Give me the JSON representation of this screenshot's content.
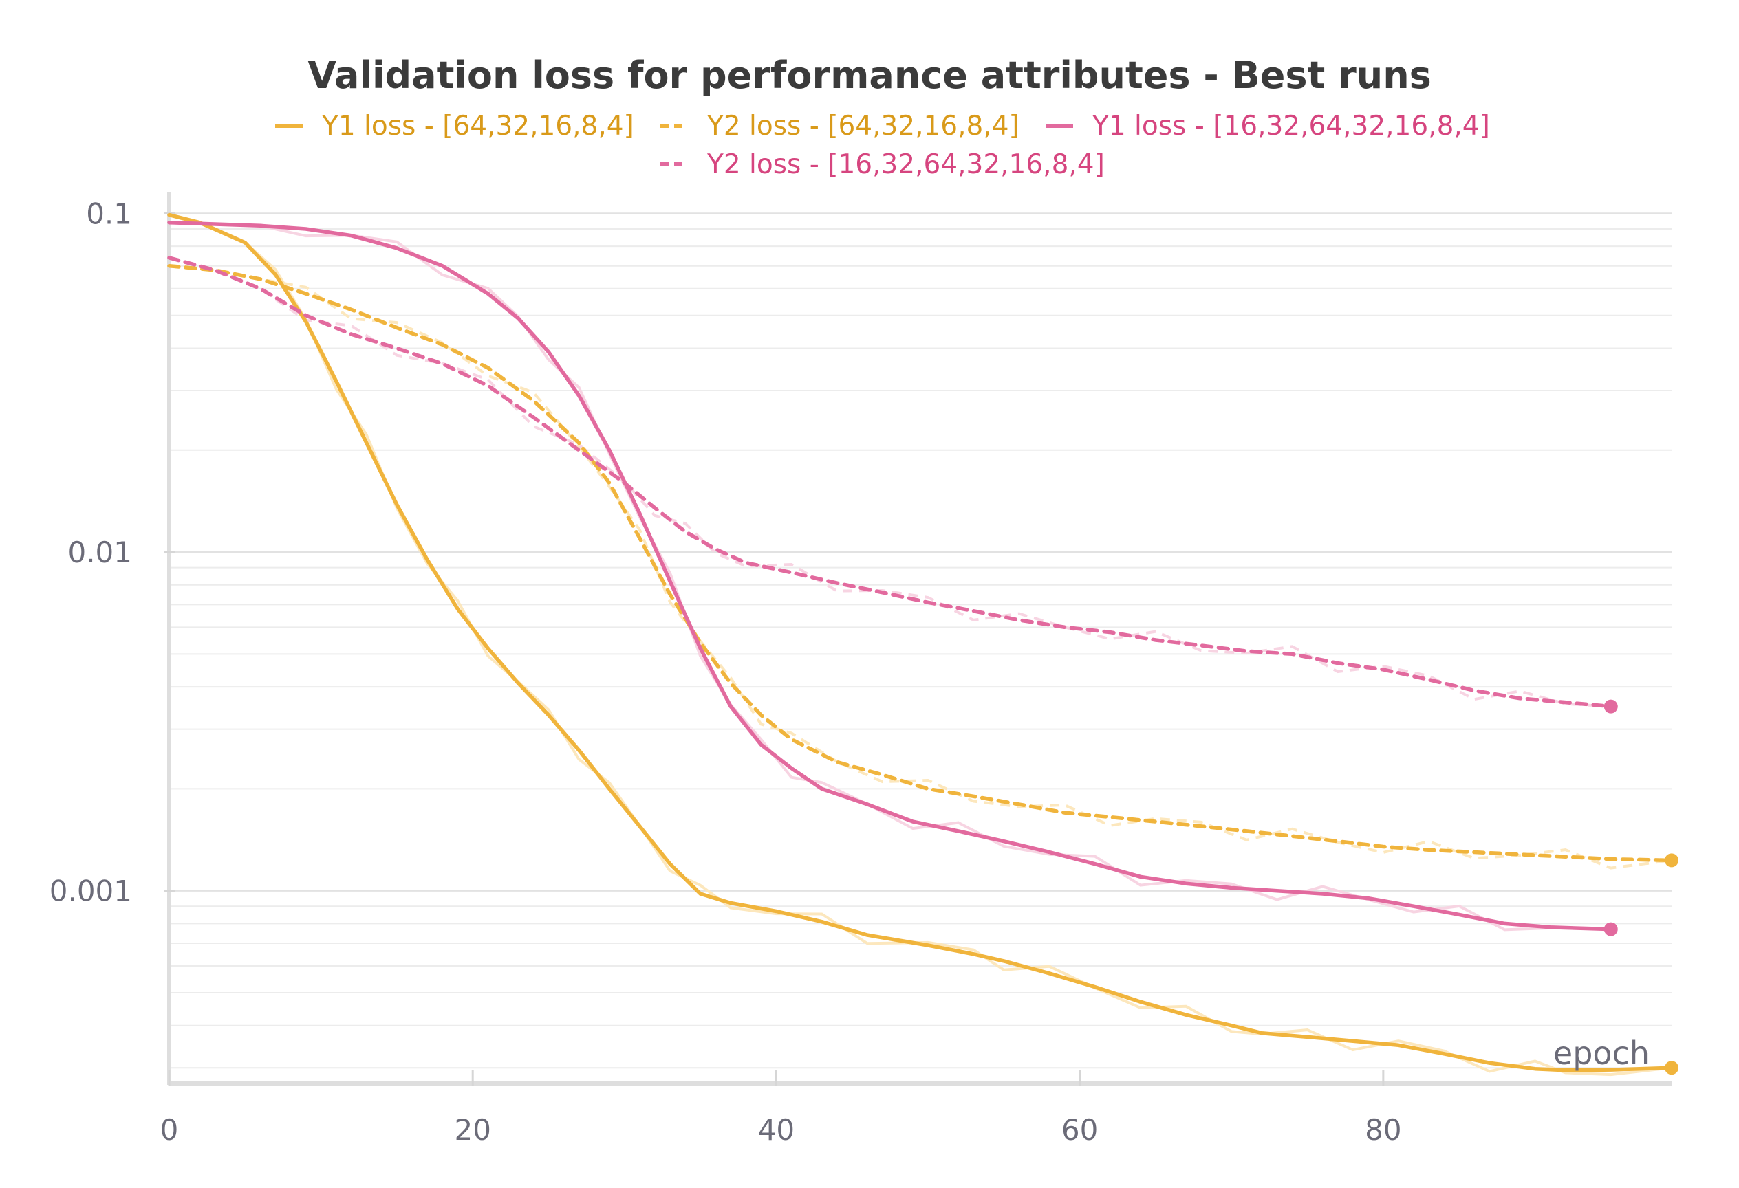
{
  "chart_data": {
    "type": "line",
    "title": "Validation loss for performance attributes - Best runs",
    "xlabel": "epoch",
    "ylabel": "",
    "y_scale": "log",
    "xlim": [
      0,
      99
    ],
    "ylim": [
      0.00028,
      0.105
    ],
    "x_ticks": [
      0,
      20,
      40,
      60,
      80
    ],
    "x_tick_labels": [
      "0",
      "20",
      "40",
      "60",
      "80"
    ],
    "y_ticks": [
      0.1,
      0.01,
      0.001
    ],
    "y_tick_labels": [
      "0.1",
      "0.01",
      "0.001"
    ],
    "grid": true,
    "legend_position": "top",
    "series": [
      {
        "name": "Y1 loss - [64,32,16,8,4]",
        "color": "#f0b43c",
        "raw_color": "#fce7bd",
        "dash": "solid",
        "x": [
          0,
          2,
          5,
          7,
          9,
          11,
          13,
          15,
          17,
          19,
          21,
          23,
          25,
          27,
          29,
          31,
          33,
          35,
          37,
          40,
          43,
          46,
          50,
          53,
          55,
          58,
          61,
          64,
          67,
          70,
          72,
          75,
          78,
          81,
          84,
          87,
          90,
          92,
          95,
          99
        ],
        "y": [
          0.099,
          0.094,
          0.082,
          0.066,
          0.048,
          0.032,
          0.021,
          0.0138,
          0.0095,
          0.0068,
          0.0052,
          0.0041,
          0.0033,
          0.0026,
          0.002,
          0.00155,
          0.0012,
          0.00098,
          0.00092,
          0.00087,
          0.00081,
          0.00074,
          0.00069,
          0.00065,
          0.00062,
          0.00057,
          0.00052,
          0.00047,
          0.00043,
          0.0004,
          0.00038,
          0.00037,
          0.00036,
          0.00035,
          0.00033,
          0.00031,
          0.000298,
          0.000295,
          0.000296,
          0.0003
        ]
      },
      {
        "name": "Y2 loss - [64,32,16,8,4]",
        "color": "#f0b43c",
        "raw_color": "#fce7bd",
        "dash": "dashed",
        "x": [
          0,
          3,
          6,
          9,
          12,
          15,
          18,
          21,
          24,
          27,
          29,
          31,
          33,
          35,
          37,
          39,
          41,
          44,
          47,
          50,
          53,
          56,
          59,
          62,
          65,
          68,
          71,
          74,
          77,
          80,
          83,
          86,
          89,
          92,
          95,
          99
        ],
        "y": [
          0.07,
          0.068,
          0.064,
          0.058,
          0.052,
          0.046,
          0.041,
          0.035,
          0.028,
          0.021,
          0.016,
          0.011,
          0.0075,
          0.0054,
          0.0041,
          0.0033,
          0.0028,
          0.0024,
          0.0022,
          0.002,
          0.0019,
          0.0018,
          0.0017,
          0.00165,
          0.0016,
          0.00155,
          0.0015,
          0.00145,
          0.0014,
          0.00135,
          0.00132,
          0.0013,
          0.00128,
          0.00126,
          0.00124,
          0.00123
        ]
      },
      {
        "name": "Y1 loss - [16,32,64,32,16,8,4]",
        "color": "#e26a9e",
        "raw_color": "#f7d4e2",
        "dash": "solid",
        "x": [
          0,
          3,
          6,
          9,
          12,
          15,
          18,
          21,
          23,
          25,
          27,
          29,
          31,
          33,
          35,
          37,
          39,
          41,
          43,
          46,
          49,
          52,
          55,
          58,
          61,
          64,
          67,
          70,
          73,
          76,
          79,
          82,
          85,
          88,
          91,
          95
        ],
        "y": [
          0.094,
          0.093,
          0.092,
          0.09,
          0.086,
          0.079,
          0.07,
          0.058,
          0.049,
          0.039,
          0.029,
          0.02,
          0.013,
          0.0082,
          0.0052,
          0.0035,
          0.0027,
          0.0023,
          0.002,
          0.0018,
          0.0016,
          0.0015,
          0.0014,
          0.0013,
          0.0012,
          0.0011,
          0.00105,
          0.00102,
          0.001,
          0.00098,
          0.00095,
          0.0009,
          0.00085,
          0.0008,
          0.00078,
          0.00077
        ]
      },
      {
        "name": "Y2 loss - [16,32,64,32,16,8,4]",
        "color": "#e26a9e",
        "raw_color": "#f7d4e2",
        "dash": "dashed",
        "x": [
          0,
          3,
          6,
          9,
          12,
          15,
          18,
          21,
          24,
          27,
          30,
          32,
          34,
          36,
          38,
          41,
          44,
          47,
          50,
          53,
          56,
          59,
          62,
          65,
          68,
          71,
          74,
          77,
          80,
          83,
          86,
          89,
          92,
          95
        ],
        "y": [
          0.074,
          0.068,
          0.06,
          0.05,
          0.044,
          0.04,
          0.036,
          0.031,
          0.025,
          0.02,
          0.016,
          0.0135,
          0.0115,
          0.0102,
          0.0093,
          0.0087,
          0.0081,
          0.0076,
          0.0071,
          0.0067,
          0.0063,
          0.006,
          0.0058,
          0.0055,
          0.0053,
          0.0051,
          0.005,
          0.0047,
          0.0045,
          0.0042,
          0.0039,
          0.0037,
          0.0036,
          0.0035
        ]
      }
    ]
  }
}
